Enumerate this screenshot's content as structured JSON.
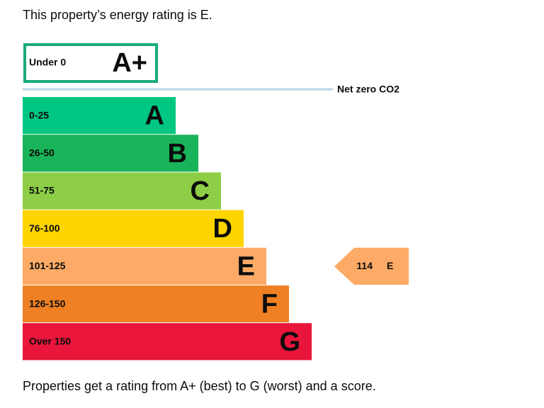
{
  "header": {
    "text": "This property’s energy rating is E."
  },
  "top_band": {
    "range": "Under 0",
    "letter": "A+",
    "color": "#1aaa7a"
  },
  "net_zero": {
    "label": "Net zero CO2",
    "color": "#bcd4e4"
  },
  "bands": [
    {
      "range": "0-25",
      "letter": "A",
      "color": "#00c781"
    },
    {
      "range": "26-50",
      "letter": "B",
      "color": "#19b459"
    },
    {
      "range": "51-75",
      "letter": "C",
      "color": "#8dce46"
    },
    {
      "range": "76-100",
      "letter": "D",
      "color": "#ffd500"
    },
    {
      "range": "101-125",
      "letter": "E",
      "color": "#fcaa65"
    },
    {
      "range": "126-150",
      "letter": "F",
      "color": "#ef8023"
    },
    {
      "range": "Over 150",
      "letter": "G",
      "color": "#e9153b"
    }
  ],
  "current": {
    "score": 114,
    "letter": "E",
    "band": 4
  },
  "footer": {
    "text": "Properties get a rating from A+ (best) to G (worst) and a score."
  }
}
